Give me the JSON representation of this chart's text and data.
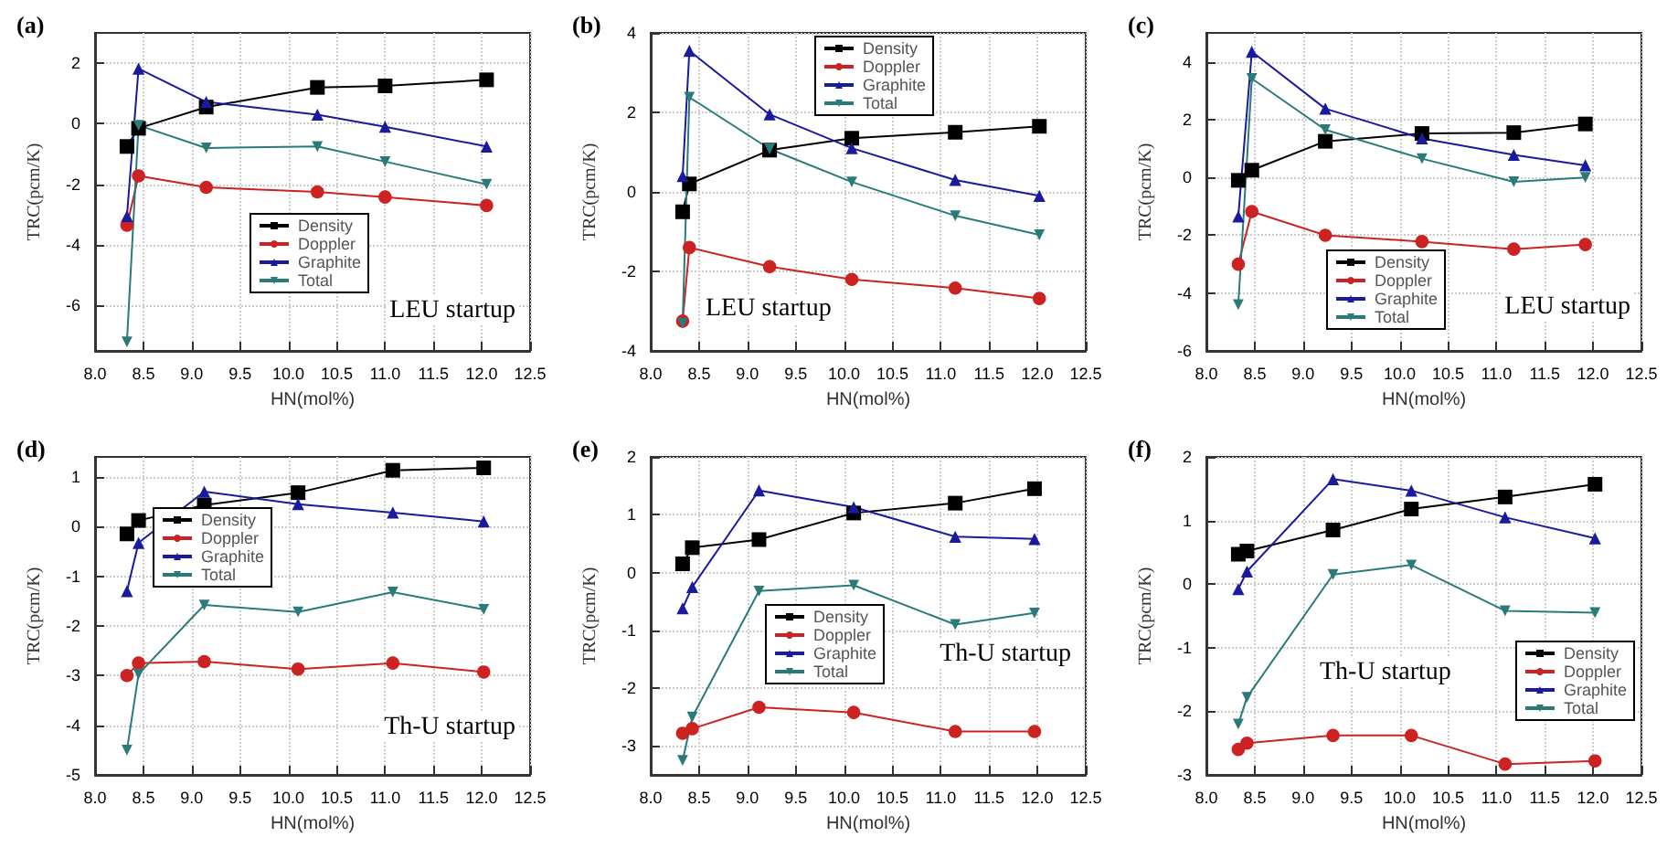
{
  "chart_data": [
    {
      "type": "line",
      "title": "(a)",
      "xlabel": "HN(mol%)",
      "ylabel": "TRC(pcm/K)",
      "annotations": [
        "LEU startup"
      ],
      "legend": "center",
      "grid": true,
      "x": [
        8.33,
        8.45,
        9.15,
        10.3,
        11.0,
        12.05
      ],
      "xlim": [
        8,
        12.5
      ],
      "xticks": [
        {
          "value": 8,
          "label": "8.0"
        },
        8.5,
        {
          "value": 9,
          "label": "9.0"
        },
        9.5,
        {
          "value": 10,
          "label": "10.0"
        },
        10.5,
        {
          "value": 11,
          "label": "11.0"
        },
        11.5,
        {
          "value": 12,
          "label": "12.0"
        },
        12.5
      ],
      "ylim": [
        -7.5,
        3
      ],
      "yticks": [
        -6,
        -4,
        -2,
        0,
        2
      ],
      "series": [
        {
          "name": "Density",
          "color": "#000000",
          "marker": "square",
          "values": [
            -0.75,
            -0.15,
            0.55,
            1.2,
            1.25,
            1.45
          ]
        },
        {
          "name": "Doppler",
          "color": "#cc2222",
          "marker": "circle",
          "values": [
            -3.35,
            -1.72,
            -2.1,
            -2.25,
            -2.42,
            -2.7
          ]
        },
        {
          "name": "Graphite",
          "color": "#1a1a9c",
          "marker": "triangle",
          "values": [
            -3.05,
            1.82,
            0.72,
            0.3,
            -0.1,
            -0.75
          ]
        },
        {
          "name": "Total",
          "color": "#2a7a7a",
          "marker": "triangle-down",
          "values": [
            -7.2,
            -0.05,
            -0.8,
            -0.75,
            -1.25,
            -2.0
          ]
        }
      ]
    },
    {
      "type": "line",
      "title": "(b)",
      "xlabel": "HN(mol%)",
      "ylabel": "TRC(pcm/K)",
      "annotations": [
        "LEU startup"
      ],
      "legend": "top",
      "grid": true,
      "x": [
        8.33,
        8.4,
        9.23,
        10.08,
        11.15,
        12.02
      ],
      "xlim": [
        8,
        12.5
      ],
      "xticks": [
        {
          "value": 8,
          "label": "8.0"
        },
        8.5,
        {
          "value": 9,
          "label": "9.0"
        },
        9.5,
        {
          "value": 10,
          "label": "10.0"
        },
        10.5,
        {
          "value": 11,
          "label": "11.0"
        },
        11.5,
        {
          "value": 12,
          "label": "12.0"
        },
        12.5
      ],
      "ylim": [
        -4,
        4
      ],
      "yticks": [
        -4,
        -2,
        0,
        2,
        4
      ],
      "series": [
        {
          "name": "Density",
          "color": "#000000",
          "marker": "square",
          "values": [
            -0.5,
            0.2,
            1.05,
            1.35,
            1.5,
            1.65
          ]
        },
        {
          "name": "Doppler",
          "color": "#cc2222",
          "marker": "circle",
          "values": [
            -3.25,
            -1.4,
            -1.88,
            -2.2,
            -2.42,
            -2.68
          ]
        },
        {
          "name": "Graphite",
          "color": "#1a1a9c",
          "marker": "triangle",
          "values": [
            0.4,
            3.55,
            1.95,
            1.1,
            0.3,
            -0.1
          ]
        },
        {
          "name": "Total",
          "color": "#2a7a7a",
          "marker": "triangle-down",
          "values": [
            -3.3,
            2.38,
            1.08,
            0.25,
            -0.6,
            -1.08
          ]
        }
      ]
    },
    {
      "type": "line",
      "title": "(c)",
      "xlabel": "HN(mol%)",
      "ylabel": "TRC(pcm/K)",
      "annotations": [
        "LEU startup"
      ],
      "legend": "bottom",
      "grid": true,
      "x": [
        8.33,
        8.47,
        9.23,
        10.23,
        11.18,
        11.92
      ],
      "xlim": [
        8,
        12.5
      ],
      "xticks": [
        {
          "value": 8,
          "label": "8.0"
        },
        8.5,
        {
          "value": 9,
          "label": "9.0"
        },
        9.5,
        {
          "value": 10,
          "label": "10.0"
        },
        10.5,
        {
          "value": 11,
          "label": "11.0"
        },
        11.5,
        {
          "value": 12,
          "label": "12.0"
        },
        12.5
      ],
      "ylim": [
        -6,
        5
      ],
      "yticks": [
        -6,
        -4,
        -2,
        0,
        2,
        4
      ],
      "series": [
        {
          "name": "Density",
          "color": "#000000",
          "marker": "square",
          "values": [
            -0.1,
            0.25,
            1.25,
            1.52,
            1.55,
            1.85
          ]
        },
        {
          "name": "Doppler",
          "color": "#cc2222",
          "marker": "circle",
          "values": [
            -3.0,
            -1.18,
            -2.0,
            -2.22,
            -2.48,
            -2.32
          ]
        },
        {
          "name": "Graphite",
          "color": "#1a1a9c",
          "marker": "triangle",
          "values": [
            -1.35,
            4.35,
            2.38,
            1.35,
            0.78,
            0.42
          ]
        },
        {
          "name": "Total",
          "color": "#2a7a7a",
          "marker": "triangle-down",
          "values": [
            -4.4,
            3.42,
            1.65,
            0.65,
            -0.15,
            0.0
          ]
        }
      ]
    },
    {
      "type": "line",
      "title": "(d)",
      "xlabel": "HN(mol%)",
      "ylabel": "TRC(pcm/K)",
      "annotations": [
        "Th-U startup"
      ],
      "legend": "top",
      "grid": true,
      "x": [
        8.33,
        8.45,
        9.13,
        10.1,
        11.08,
        12.02
      ],
      "xlim": [
        8,
        12.5
      ],
      "xticks": [
        {
          "value": 8,
          "label": "8.0"
        },
        8.5,
        {
          "value": 9,
          "label": "9.0"
        },
        9.5,
        {
          "value": 10,
          "label": "10.0"
        },
        10.5,
        {
          "value": 11,
          "label": "11.0"
        },
        11.5,
        {
          "value": 12,
          "label": "12.0"
        },
        12.5
      ],
      "ylim": [
        -5,
        1.4
      ],
      "yticks": [
        -5,
        -4,
        -3,
        -2,
        -1,
        0,
        1
      ],
      "series": [
        {
          "name": "Density",
          "color": "#000000",
          "marker": "square",
          "values": [
            -0.15,
            0.12,
            0.43,
            0.68,
            1.13,
            1.18
          ]
        },
        {
          "name": "Doppler",
          "color": "#cc2222",
          "marker": "circle",
          "values": [
            -3.0,
            -2.75,
            -2.72,
            -2.87,
            -2.75,
            -2.93
          ]
        },
        {
          "name": "Graphite",
          "color": "#1a1a9c",
          "marker": "triangle",
          "values": [
            -1.3,
            -0.33,
            0.7,
            0.45,
            0.28,
            0.1
          ]
        },
        {
          "name": "Total",
          "color": "#2a7a7a",
          "marker": "triangle-down",
          "values": [
            -4.5,
            -2.97,
            -1.58,
            -1.72,
            -1.32,
            -1.67
          ]
        }
      ]
    },
    {
      "type": "line",
      "title": "(e)",
      "xlabel": "HN(mol%)",
      "ylabel": "TRC(pcm/K)",
      "annotations": [
        "Th-U startup"
      ],
      "legend": "center",
      "grid": true,
      "x": [
        8.33,
        8.43,
        9.12,
        10.1,
        11.15,
        11.97
      ],
      "xlim": [
        8,
        12.5
      ],
      "xticks": [
        {
          "value": 8,
          "label": "8.0"
        },
        8.5,
        {
          "value": 9,
          "label": "9.0"
        },
        9.5,
        {
          "value": 10,
          "label": "10.0"
        },
        10.5,
        {
          "value": 11,
          "label": "11.0"
        },
        11.5,
        {
          "value": 12,
          "label": "12.0"
        },
        12.5
      ],
      "ylim": [
        -3.5,
        2
      ],
      "yticks": [
        -3,
        -2,
        -1,
        0,
        1,
        2
      ],
      "series": [
        {
          "name": "Density",
          "color": "#000000",
          "marker": "square",
          "values": [
            0.15,
            0.43,
            0.57,
            1.03,
            1.2,
            1.45
          ]
        },
        {
          "name": "Doppler",
          "color": "#cc2222",
          "marker": "circle",
          "values": [
            -2.78,
            -2.7,
            -2.33,
            -2.42,
            -2.75,
            -2.75
          ]
        },
        {
          "name": "Graphite",
          "color": "#1a1a9c",
          "marker": "triangle",
          "values": [
            -0.62,
            -0.25,
            1.42,
            1.13,
            0.62,
            0.58
          ]
        },
        {
          "name": "Total",
          "color": "#2a7a7a",
          "marker": "triangle-down",
          "values": [
            -3.25,
            -2.5,
            -0.32,
            -0.22,
            -0.9,
            -0.7
          ]
        }
      ]
    },
    {
      "type": "line",
      "title": "(f)",
      "xlabel": "HN(mol%)",
      "ylabel": "TRC(pcm/K)",
      "annotations": [
        "Th-U startup"
      ],
      "legend": "bottom right",
      "grid": true,
      "x": [
        8.33,
        8.42,
        9.31,
        10.12,
        11.09,
        12.02
      ],
      "xlim": [
        8,
        12.5
      ],
      "xticks": [
        {
          "value": 8,
          "label": "8.0"
        },
        8.5,
        {
          "value": 9,
          "label": "9.0"
        },
        9.5,
        {
          "value": 10,
          "label": "10.0"
        },
        10.5,
        {
          "value": 11,
          "label": "11.0"
        },
        11.5,
        {
          "value": 12,
          "label": "12.0"
        },
        12.5
      ],
      "ylim": [
        -3,
        2
      ],
      "yticks": [
        -3,
        -2,
        -1,
        0,
        1,
        2
      ],
      "series": [
        {
          "name": "Density",
          "color": "#000000",
          "marker": "square",
          "values": [
            0.47,
            0.52,
            0.85,
            1.18,
            1.37,
            1.57
          ]
        },
        {
          "name": "Doppler",
          "color": "#cc2222",
          "marker": "circle",
          "values": [
            -2.6,
            -2.5,
            -2.38,
            -2.38,
            -2.83,
            -2.78
          ]
        },
        {
          "name": "Graphite",
          "color": "#1a1a9c",
          "marker": "triangle",
          "values": [
            -0.08,
            0.2,
            1.65,
            1.47,
            1.05,
            0.72
          ]
        },
        {
          "name": "Total",
          "color": "#2a7a7a",
          "marker": "triangle-down",
          "values": [
            -2.2,
            -1.78,
            0.15,
            0.3,
            -0.42,
            -0.45
          ]
        }
      ]
    }
  ]
}
